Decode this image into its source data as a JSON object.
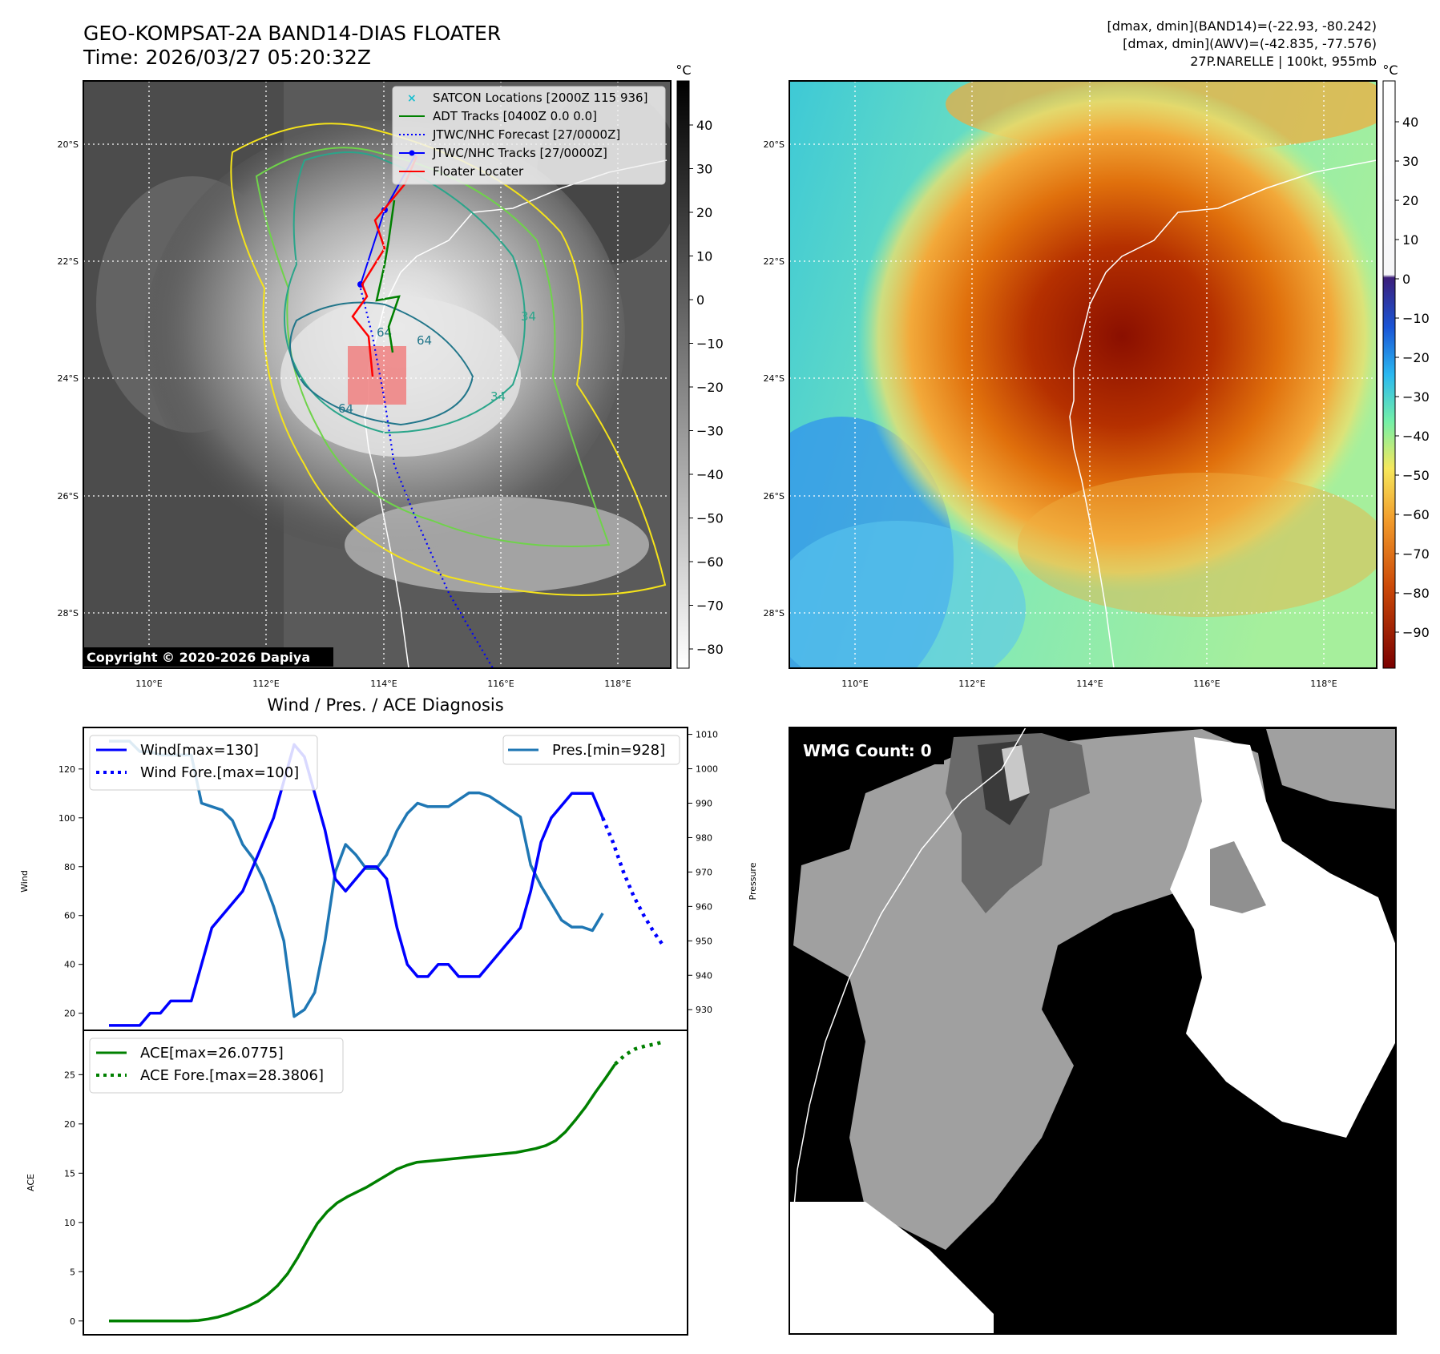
{
  "header": {
    "title_line1": "GEO-KOMPSAT-2A BAND14-DIAS FLOATER",
    "title_line2": "Time: 2026/03/27 05:20:32Z",
    "right_line1": "[dmax, dmin](BAND14)=(-22.93, -80.242)",
    "right_line2": "[dmax, dmin](AWV)=(-42.835, -77.576)",
    "right_line3": "27P.NARELLE | 100kt, 955mb"
  },
  "map": {
    "lat_labels": [
      "20°S",
      "22°S",
      "24°S",
      "26°S",
      "28°S"
    ],
    "lon_labels": [
      "110°E",
      "112°E",
      "114°E",
      "116°E",
      "118°E"
    ],
    "copyright": "Copyright © 2020-2026 Dapiya",
    "contour_labels": [
      "64",
      "64",
      "64",
      "34",
      "34"
    ],
    "legend": [
      {
        "label": "SATCON Locations [2000Z 115 936]",
        "color": "#17becf",
        "style": "x"
      },
      {
        "label": "ADT Tracks [0400Z 0.0 0.0]",
        "color": "#008000",
        "style": "line"
      },
      {
        "label": "JTWC/NHC Forecast [27/0000Z]",
        "color": "#0000ff",
        "style": "dotted"
      },
      {
        "label": "JTWC/NHC Tracks [27/0000Z]",
        "color": "#0000ff",
        "style": "line-dot"
      },
      {
        "label": "Floater Locater",
        "color": "#ff0000",
        "style": "line"
      }
    ],
    "colorbar_gray": {
      "unit": "°C",
      "ticks": [
        "40",
        "30",
        "20",
        "10",
        "0",
        "−10",
        "−20",
        "−30",
        "−40",
        "−50",
        "−60",
        "−70",
        "−80"
      ]
    },
    "colorbar_color": {
      "unit": "°C",
      "ticks": [
        "40",
        "30",
        "20",
        "10",
        "0",
        "−10",
        "−20",
        "−30",
        "−40",
        "−50",
        "−60",
        "−70",
        "−80",
        "−90"
      ]
    }
  },
  "diagnosis": {
    "title": "Wind / Pres. / ACE Diagnosis",
    "wmg": "WMG Count: 0"
  },
  "chart_data": [
    {
      "type": "line",
      "title": "Wind / Pres. / ACE Diagnosis",
      "ylabel": "Wind",
      "y2label": "Pressure",
      "ylim": [
        13,
        137
      ],
      "y2lim": [
        924,
        1012
      ],
      "yticks": [
        20,
        40,
        60,
        80,
        100,
        120
      ],
      "y2ticks": [
        930,
        940,
        950,
        960,
        970,
        980,
        990,
        1000,
        1010
      ],
      "series": [
        {
          "name": "Wind[max=130]",
          "color": "#0000ff",
          "style": "solid",
          "values": [
            15,
            15,
            15,
            15,
            20,
            20,
            25,
            25,
            25,
            40,
            55,
            60,
            65,
            70,
            80,
            90,
            100,
            115,
            130,
            125,
            110,
            95,
            75,
            70,
            75,
            80,
            80,
            75,
            55,
            40,
            35,
            35,
            40,
            40,
            35,
            35,
            35,
            40,
            45,
            50,
            55,
            70,
            90,
            100,
            105,
            110,
            110,
            110,
            100
          ]
        },
        {
          "name": "Wind Fore.[max=100]",
          "color": "#0000ff",
          "style": "dotted",
          "x_start": 48,
          "values": [
            100,
            90,
            78,
            68,
            60,
            53,
            47
          ]
        },
        {
          "name": "Pres.[min=928]",
          "color": "#1f77b4",
          "style": "solid",
          "axis": "right",
          "values": [
            1008,
            1008,
            1008,
            1005,
            1005,
            1004,
            1004,
            1004,
            1004,
            990,
            989,
            988,
            985,
            978,
            974,
            968,
            960,
            950,
            928,
            930,
            935,
            950,
            970,
            978,
            975,
            971,
            971,
            975,
            982,
            987,
            990,
            989,
            989,
            989,
            991,
            993,
            993,
            992,
            990,
            988,
            986,
            972,
            966,
            961,
            956,
            954,
            954,
            953,
            958
          ]
        }
      ]
    },
    {
      "type": "line",
      "ylabel": "ACE",
      "ylim": [
        -1.4,
        29.5
      ],
      "yticks": [
        0,
        5,
        10,
        15,
        20,
        25
      ],
      "series": [
        {
          "name": "ACE[max=26.0775]",
          "color": "#008000",
          "style": "solid",
          "values": [
            0,
            0,
            0,
            0,
            0,
            0,
            0,
            0,
            0,
            0.05,
            0.2,
            0.4,
            0.7,
            1.1,
            1.5,
            2.0,
            2.7,
            3.6,
            4.8,
            6.4,
            8.2,
            9.9,
            11.1,
            12.0,
            12.6,
            13.1,
            13.6,
            14.2,
            14.8,
            15.4,
            15.8,
            16.1,
            16.2,
            16.3,
            16.4,
            16.5,
            16.6,
            16.7,
            16.8,
            16.9,
            17.0,
            17.1,
            17.3,
            17.5,
            17.8,
            18.3,
            19.2,
            20.4,
            21.7,
            23.2,
            24.6,
            26.0775
          ]
        },
        {
          "name": "ACE Fore.[max=28.3806]",
          "color": "#008000",
          "style": "dotted",
          "x_start": 51,
          "values": [
            26.0775,
            27.0,
            27.6,
            27.9,
            28.1,
            28.3806
          ]
        }
      ]
    }
  ]
}
